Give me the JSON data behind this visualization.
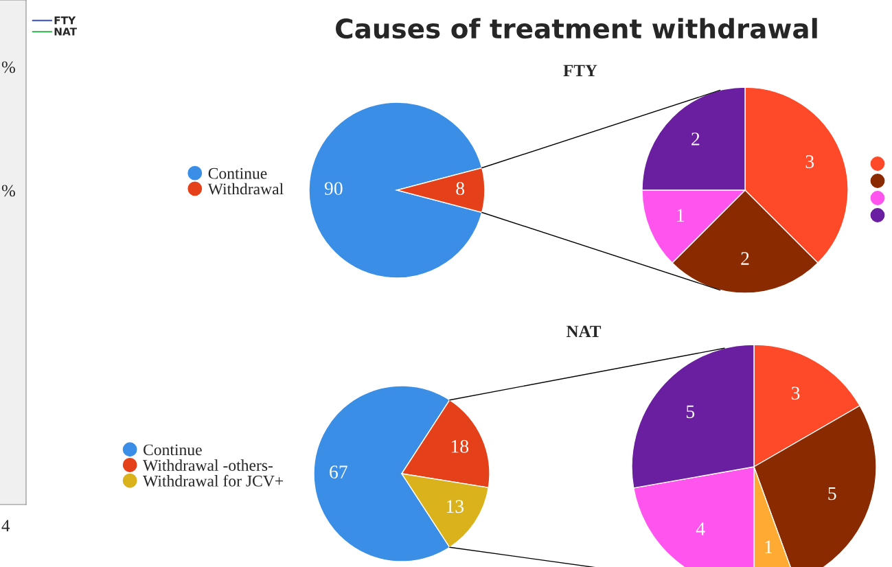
{
  "chart_data": [
    {
      "type": "other",
      "series": [
        {
          "name": "FTY",
          "color": "#4a5fc8"
        },
        {
          "name": "NAT",
          "color": "#2fb24a"
        }
      ],
      "annotations": [
        "%",
        "%",
        "4"
      ],
      "legend": "top right"
    },
    {
      "type": "pie",
      "title": "Causes of treatment withdrawal",
      "subtitle": "FTY",
      "categories": [
        "Continue",
        "Withdrawal"
      ],
      "values": [
        90,
        8
      ],
      "colors": [
        "#3a8ee6",
        "#e4411b"
      ],
      "data_labels": true,
      "legend": "left"
    },
    {
      "type": "pie",
      "categories": [
        null,
        null,
        null,
        null
      ],
      "values": [
        3,
        2,
        1,
        2
      ],
      "colors": [
        "#ff4a2a",
        "#8a2a00",
        "#ff55ee",
        "#6a1fa0"
      ],
      "data_labels": true
    },
    {
      "type": "pie",
      "subtitle": "NAT",
      "categories": [
        "Continue",
        "Withdrawal -others-",
        "Withdrawal for JCV+"
      ],
      "values": [
        67,
        18,
        13
      ],
      "colors": [
        "#3a8ee6",
        "#e4411b",
        "#d9b21c"
      ],
      "data_labels": true,
      "legend": "left"
    },
    {
      "type": "pie",
      "categories": [
        null,
        null,
        null,
        null,
        null
      ],
      "values": [
        3,
        5,
        1,
        4,
        5
      ],
      "colors": [
        "#ff4a2a",
        "#8a2a00",
        "#ffaa33",
        "#ff55ee",
        "#6a1fa0"
      ],
      "data_labels": true
    }
  ]
}
